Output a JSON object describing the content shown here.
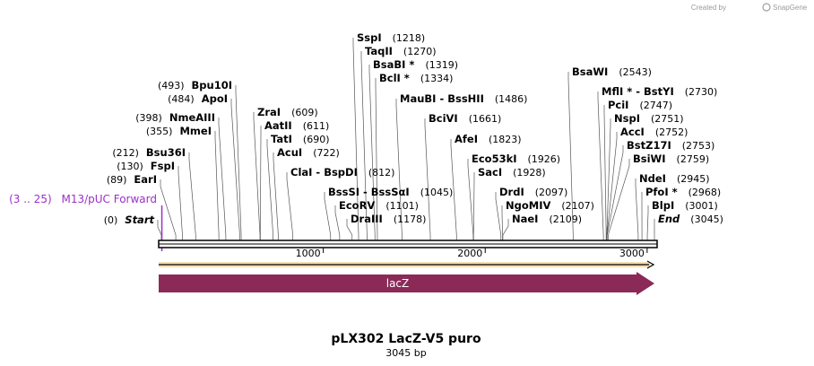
{
  "credit": {
    "prefix": "Created by",
    "brand": "SnapGene"
  },
  "plasmid": {
    "name": "pLX302 LacZ-V5 puro",
    "length_label": "3045 bp",
    "length": 3045
  },
  "axis": {
    "ticks": [
      {
        "value": 1000,
        "label": "1000"
      },
      {
        "value": 2000,
        "label": "2000"
      },
      {
        "value": 3000,
        "label": "3000"
      }
    ]
  },
  "primer": {
    "label": "M13/pUC Forward",
    "pos_label": "(3 .. 25)",
    "start": 3,
    "end": 25
  },
  "feature": {
    "label": "lacZ",
    "color": "#8b2a57"
  },
  "orf_color": "#e0a030",
  "sites": [
    {
      "name": "Start",
      "pos_label": "(0)",
      "pos": 0
    },
    {
      "name": "EarI",
      "pos_label": "(89)",
      "pos": 89
    },
    {
      "name": "FspI",
      "pos_label": "(130)",
      "pos": 130
    },
    {
      "name": "Bsu36I",
      "pos_label": "(212)",
      "pos": 212
    },
    {
      "name": "MmeI",
      "pos_label": "(355)",
      "pos": 355
    },
    {
      "name": "NmeAIII",
      "pos_label": "(398)",
      "pos": 398
    },
    {
      "name": "ApoI",
      "pos_label": "(484)",
      "pos": 484
    },
    {
      "name": "Bpu10I",
      "pos_label": "(493)",
      "pos": 493
    },
    {
      "name": "ZraI",
      "pos_label": "(609)",
      "pos": 609
    },
    {
      "name": "AatII",
      "pos_label": "(611)",
      "pos": 611
    },
    {
      "name": "TatI",
      "pos_label": "(690)",
      "pos": 690
    },
    {
      "name": "AcuI",
      "pos_label": "(722)",
      "pos": 722
    },
    {
      "name": "ClaI  -  BspDI",
      "pos_label": "(812)",
      "pos": 812
    },
    {
      "name": "BssSI  -  BssSαI",
      "pos_label": "(1045)",
      "pos": 1045
    },
    {
      "name": "EcoRV",
      "pos_label": "(1101)",
      "pos": 1101
    },
    {
      "name": "DraIII",
      "pos_label": "(1178)",
      "pos": 1178
    },
    {
      "name": "SspI",
      "pos_label": "(1218)",
      "pos": 1218
    },
    {
      "name": "TaqII",
      "pos_label": "(1270)",
      "pos": 1270
    },
    {
      "name": "BsaBI *",
      "pos_label": "(1319)",
      "pos": 1319
    },
    {
      "name": "BclI *",
      "pos_label": "(1334)",
      "pos": 1334
    },
    {
      "name": "MauBI  -  BssHII",
      "pos_label": "(1486)",
      "pos": 1486
    },
    {
      "name": "BciVI",
      "pos_label": "(1661)",
      "pos": 1661
    },
    {
      "name": "AfeI",
      "pos_label": "(1823)",
      "pos": 1823
    },
    {
      "name": "Eco53kI",
      "pos_label": "(1926)",
      "pos": 1926
    },
    {
      "name": "SacI",
      "pos_label": "(1928)",
      "pos": 1928
    },
    {
      "name": "DrdI",
      "pos_label": "(2097)",
      "pos": 2097
    },
    {
      "name": "NgoMIV",
      "pos_label": "(2107)",
      "pos": 2107
    },
    {
      "name": "NaeI",
      "pos_label": "(2109)",
      "pos": 2109
    },
    {
      "name": "BsaWI",
      "pos_label": "(2543)",
      "pos": 2543
    },
    {
      "name": "MflI *  -  BstYI",
      "pos_label": "(2730)",
      "pos": 2730
    },
    {
      "name": "PciI",
      "pos_label": "(2747)",
      "pos": 2747
    },
    {
      "name": "NspI",
      "pos_label": "(2751)",
      "pos": 2751
    },
    {
      "name": "AccI",
      "pos_label": "(2752)",
      "pos": 2752
    },
    {
      "name": "BstZ17I",
      "pos_label": "(2753)",
      "pos": 2753
    },
    {
      "name": "BsiWI",
      "pos_label": "(2759)",
      "pos": 2759
    },
    {
      "name": "NdeI",
      "pos_label": "(2945)",
      "pos": 2945
    },
    {
      "name": "PfoI *",
      "pos_label": "(2968)",
      "pos": 2968
    },
    {
      "name": "BlpI",
      "pos_label": "(3001)",
      "pos": 3001
    },
    {
      "name": "End",
      "pos_label": "(3045)",
      "pos": 3045
    }
  ]
}
